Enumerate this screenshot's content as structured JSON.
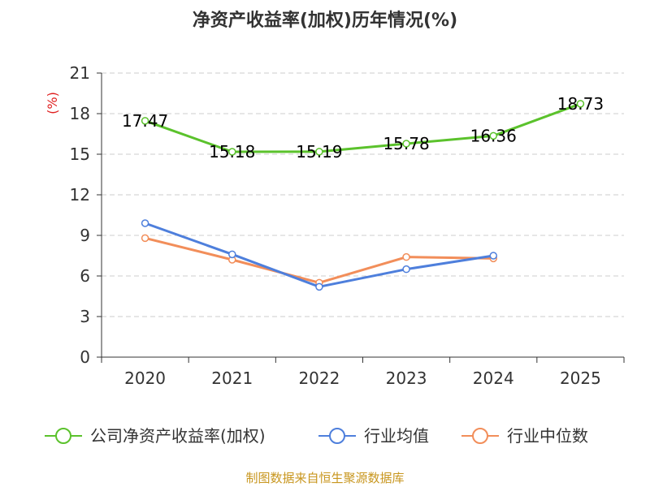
{
  "chart_data": {
    "type": "line",
    "title": "净资产收益率(加权)历年情况(%)",
    "ylabel": "(%)",
    "xlabel": "",
    "categories": [
      "2020",
      "2021",
      "2022",
      "2023",
      "2024",
      "2025"
    ],
    "yticks": [
      "0",
      "3",
      "6",
      "9",
      "12",
      "15",
      "18",
      "21"
    ],
    "ylim": [
      0,
      21
    ],
    "grid": true,
    "legend_position": "bottom",
    "series": [
      {
        "name": "公司净资产收益率(加权)",
        "color": "#5bc22c",
        "values": [
          17.47,
          15.18,
          15.19,
          15.78,
          16.36,
          18.73
        ],
        "labels": [
          "17.47",
          "15.18",
          "15.19",
          "15.78",
          "16.36",
          "18.73"
        ]
      },
      {
        "name": "行业均值",
        "color": "#4e7fdc",
        "values": [
          9.9,
          7.6,
          5.2,
          6.5,
          7.5,
          null
        ]
      },
      {
        "name": "行业中位数",
        "color": "#f28e5a",
        "values": [
          8.8,
          7.2,
          5.5,
          7.4,
          7.3,
          null
        ]
      }
    ]
  },
  "source": "制图数据来自恒生聚源数据库"
}
